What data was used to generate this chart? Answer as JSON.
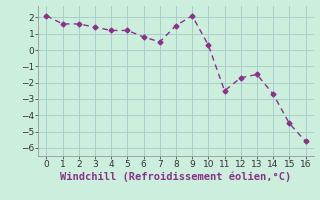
{
  "x": [
    0,
    1,
    2,
    3,
    4,
    5,
    6,
    7,
    8,
    9,
    10,
    11,
    12,
    13,
    14,
    15,
    16
  ],
  "y": [
    2.1,
    1.6,
    1.6,
    1.4,
    1.2,
    1.2,
    0.8,
    0.5,
    1.5,
    2.1,
    0.3,
    -2.5,
    -1.7,
    -1.5,
    -2.7,
    -4.5,
    -5.6
  ],
  "line_color": "#883388",
  "marker": "D",
  "marker_size": 2.5,
  "bg_color": "#cceedd",
  "grid_color": "#aacccc",
  "xlabel": "Windchill (Refroidissement éolien,°C)",
  "xlabel_fontsize": 7.5,
  "xlim": [
    -0.5,
    16.5
  ],
  "ylim": [
    -6.5,
    2.7
  ],
  "yticks": [
    -6,
    -5,
    -4,
    -3,
    -2,
    -1,
    0,
    1,
    2
  ],
  "xticks": [
    0,
    1,
    2,
    3,
    4,
    5,
    6,
    7,
    8,
    9,
    10,
    11,
    12,
    13,
    14,
    15,
    16
  ],
  "tick_labelsize": 6.5,
  "linewidth": 1.0
}
